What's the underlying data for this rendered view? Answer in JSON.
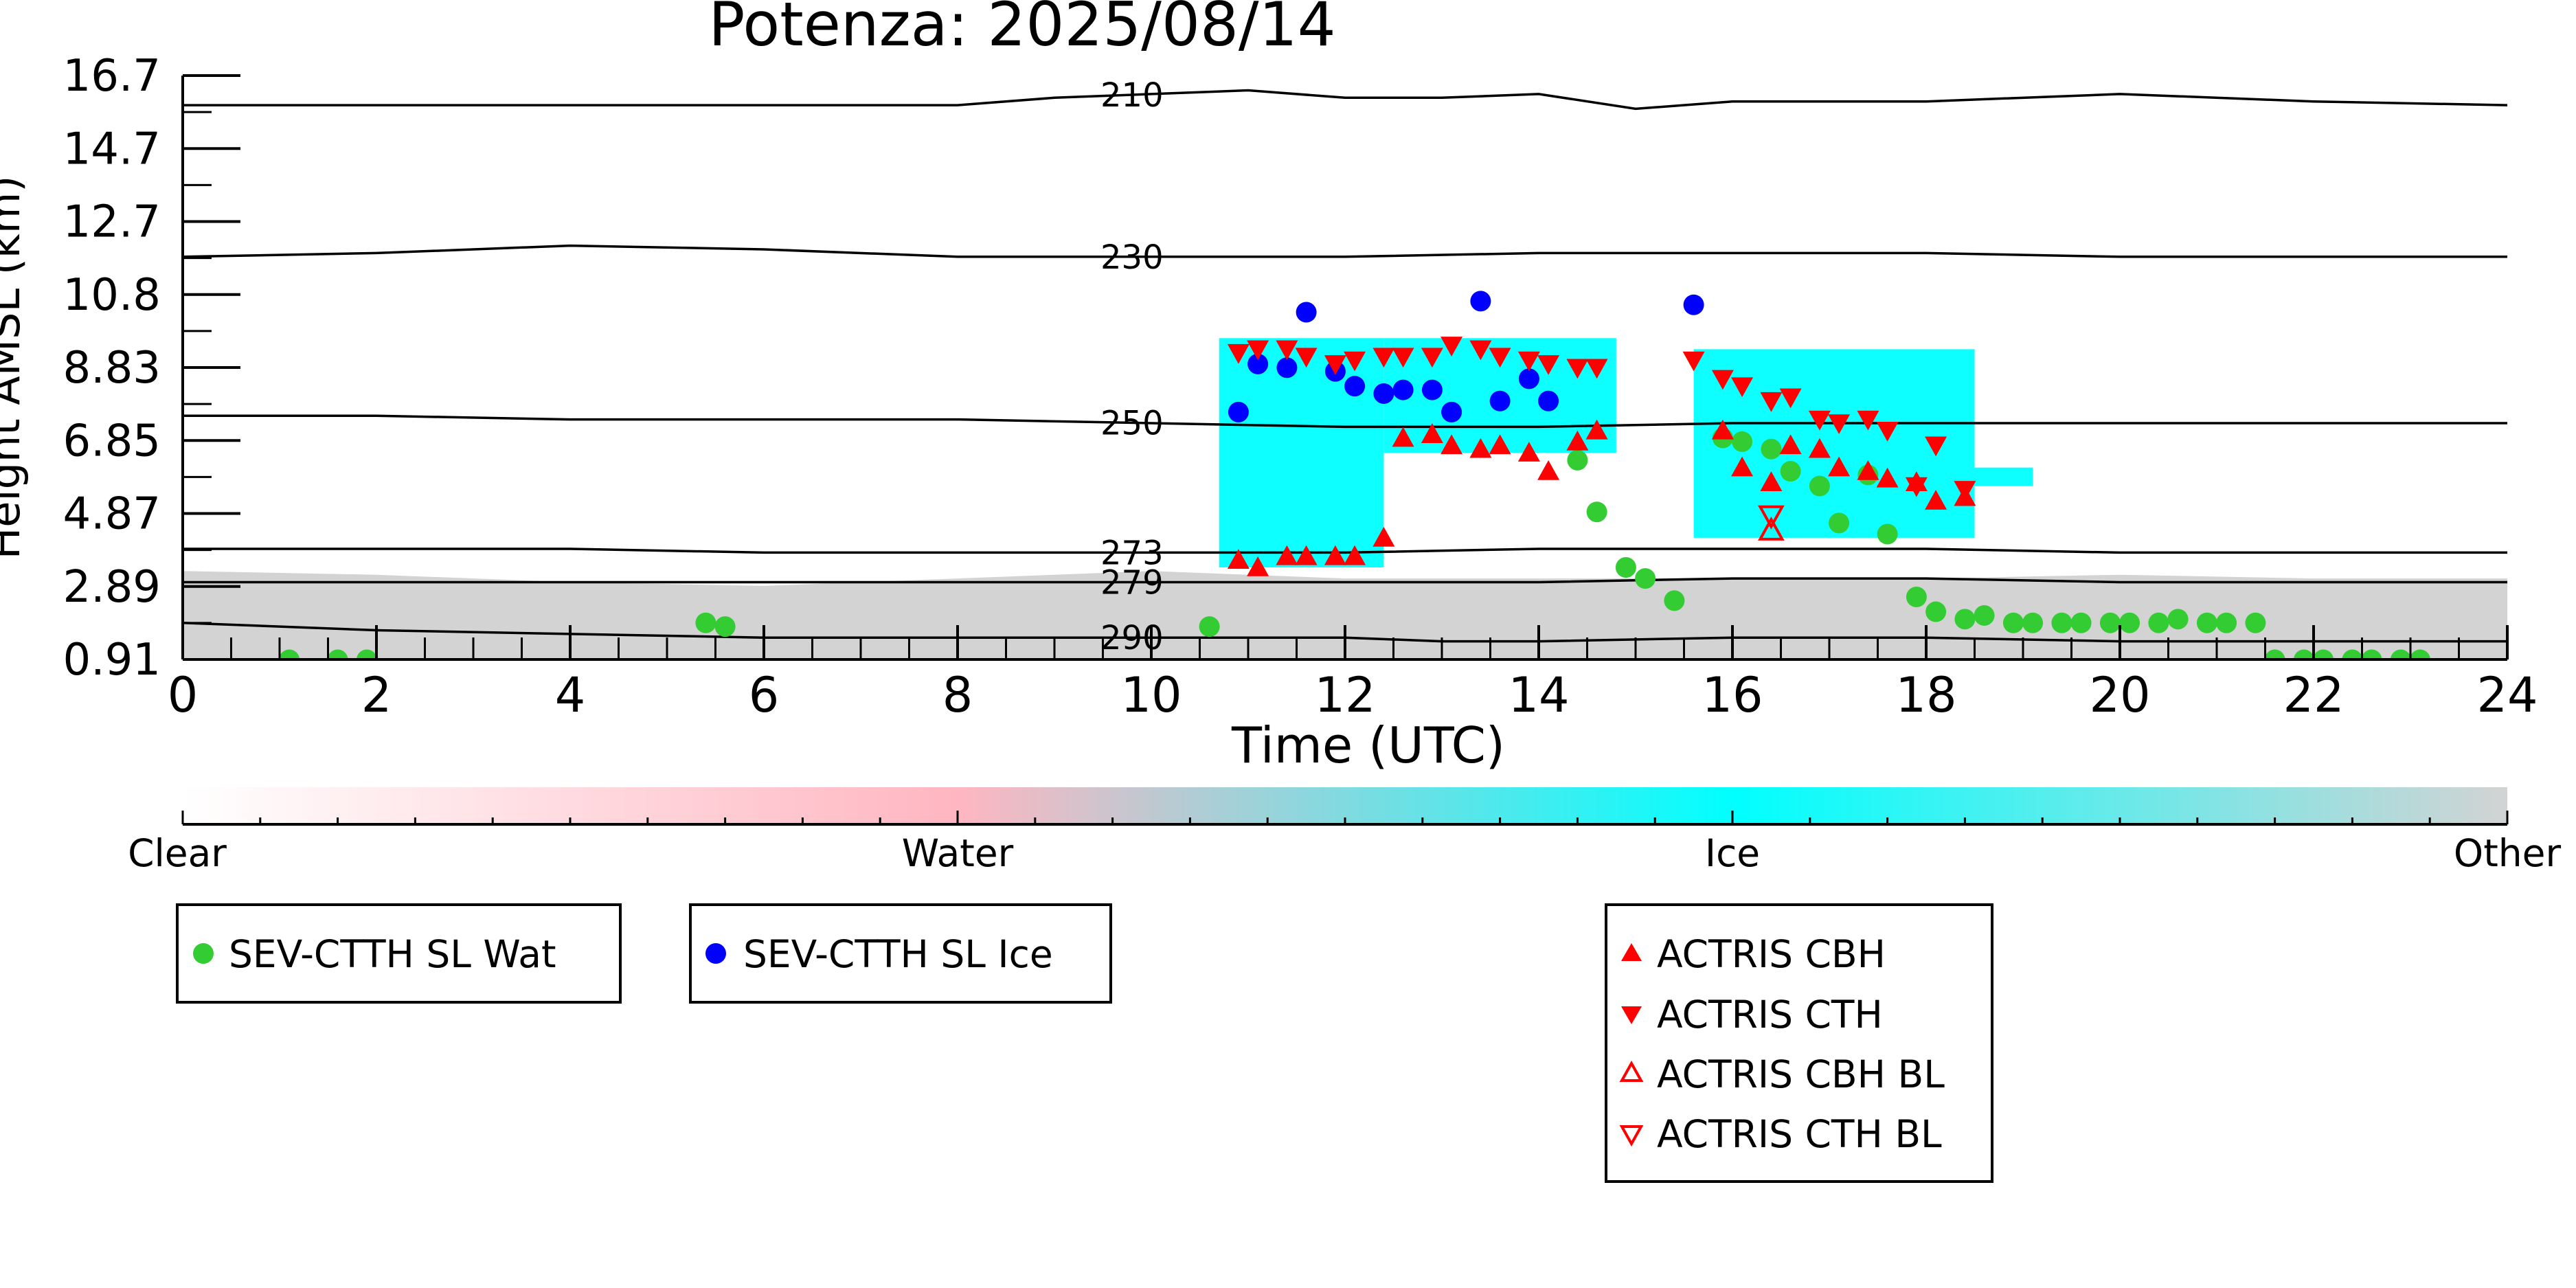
{
  "colors": {
    "axis": "#000000",
    "clear": "#ffffff",
    "water": "#ffb6c1",
    "ice": "#00ffff",
    "other": "#d3d3d3",
    "wat_marker": "#33cc33",
    "ice_marker": "#0000ff",
    "actris_marker": "#ff0000"
  },
  "chart_data": {
    "type": "scatter",
    "title": "Potenza: 2025/08/14",
    "xlabel": "Time (UTC)",
    "ylabel": "Height AMSL (km)",
    "xlim": [
      0,
      24
    ],
    "ylim": [
      0.91,
      16.7
    ],
    "x_ticks": [
      "0",
      "2",
      "4",
      "6",
      "8",
      "10",
      "12",
      "14",
      "16",
      "18",
      "20",
      "22",
      "24"
    ],
    "y_ticks": [
      "0.91",
      "2.89",
      "4.87",
      "6.85",
      "8.83",
      "10.8",
      "12.7",
      "14.7",
      "16.7"
    ],
    "isotherms": [
      {
        "label": "210",
        "x": [
          0,
          4,
          8,
          9,
          10,
          11,
          12,
          13,
          14,
          15,
          16,
          18,
          20,
          22,
          24
        ],
        "y": [
          15.9,
          15.9,
          15.9,
          16.1,
          16.2,
          16.3,
          16.1,
          16.1,
          16.2,
          15.8,
          16.0,
          16.0,
          16.2,
          16.0,
          15.9
        ]
      },
      {
        "label": "230",
        "x": [
          0,
          2,
          4,
          6,
          8,
          10,
          12,
          14,
          16,
          18,
          20,
          22,
          24
        ],
        "y": [
          11.8,
          11.9,
          12.1,
          12.0,
          11.8,
          11.8,
          11.8,
          11.9,
          11.9,
          11.9,
          11.8,
          11.8,
          11.8
        ]
      },
      {
        "label": "250",
        "x": [
          0,
          2,
          4,
          6,
          8,
          10,
          12,
          14,
          16,
          18,
          20,
          22,
          24
        ],
        "y": [
          7.5,
          7.5,
          7.4,
          7.4,
          7.4,
          7.3,
          7.2,
          7.2,
          7.3,
          7.3,
          7.3,
          7.3,
          7.3
        ]
      },
      {
        "label": "273",
        "x": [
          0,
          2,
          4,
          6,
          8,
          10,
          12,
          14,
          16,
          18,
          20,
          22,
          24
        ],
        "y": [
          3.9,
          3.9,
          3.9,
          3.8,
          3.8,
          3.8,
          3.8,
          3.9,
          3.9,
          3.9,
          3.8,
          3.8,
          3.8
        ]
      },
      {
        "label": "279",
        "x": [
          0,
          2,
          4,
          6,
          8,
          10,
          12,
          14,
          16,
          18,
          20,
          22,
          24
        ],
        "y": [
          3.0,
          3.0,
          3.0,
          3.0,
          3.0,
          3.0,
          3.0,
          3.0,
          3.1,
          3.1,
          3.0,
          3.0,
          3.0
        ]
      },
      {
        "label": "290",
        "x": [
          0,
          2,
          4,
          6,
          8,
          10,
          12,
          13,
          14,
          16,
          18,
          20,
          22,
          24
        ],
        "y": [
          1.9,
          1.7,
          1.6,
          1.5,
          1.5,
          1.5,
          1.5,
          1.4,
          1.4,
          1.5,
          1.5,
          1.4,
          1.4,
          1.4
        ]
      }
    ],
    "series": [
      {
        "name": "SEV-CTTH SL Wat",
        "marker": "circle",
        "color": "#33cc33",
        "x": [
          1.1,
          1.6,
          1.9,
          5.4,
          5.6,
          10.6,
          14.4,
          14.6,
          14.9,
          15.1,
          15.4,
          15.9,
          16.1,
          16.4,
          16.6,
          16.9,
          17.1,
          17.4,
          17.6,
          17.9,
          18.1,
          18.4,
          18.6,
          18.9,
          19.1,
          19.4,
          19.6,
          19.9,
          20.1,
          20.4,
          20.6,
          20.9,
          21.1,
          21.4,
          21.6,
          21.9,
          22.1,
          22.4,
          22.6,
          22.9,
          23.1
        ],
        "y": [
          0.9,
          0.9,
          0.9,
          1.9,
          1.8,
          1.8,
          6.3,
          4.9,
          3.4,
          3.1,
          2.5,
          6.9,
          6.8,
          6.6,
          6.0,
          5.6,
          4.6,
          5.9,
          4.3,
          2.6,
          2.2,
          2.0,
          2.1,
          1.9,
          1.9,
          1.9,
          1.9,
          1.9,
          1.9,
          1.9,
          2.0,
          1.9,
          1.9,
          1.9,
          0.9,
          0.9,
          0.9,
          0.9,
          0.9,
          0.9,
          0.9
        ]
      },
      {
        "name": "SEV-CTTH SL Ice",
        "marker": "circle",
        "color": "#0000ff",
        "x": [
          10.9,
          11.1,
          11.4,
          11.6,
          11.9,
          12.1,
          12.4,
          12.6,
          12.9,
          13.1,
          13.4,
          13.6,
          13.9,
          14.1,
          15.6
        ],
        "y": [
          7.6,
          8.9,
          8.8,
          10.3,
          8.7,
          8.3,
          8.1,
          8.2,
          8.2,
          7.6,
          10.6,
          7.9,
          8.5,
          7.9,
          10.5
        ]
      },
      {
        "name": "ACTRIS CBH",
        "marker": "triangle-up",
        "color": "#ff0000",
        "x": [
          10.9,
          11.1,
          11.4,
          11.6,
          11.9,
          12.1,
          12.4,
          12.6,
          12.9,
          13.1,
          13.4,
          13.6,
          13.9,
          14.1,
          14.4,
          14.6,
          15.9,
          16.1,
          16.4,
          16.6,
          16.9,
          17.1,
          17.4,
          17.6,
          17.9,
          18.1,
          18.4
        ],
        "y": [
          3.6,
          3.4,
          3.7,
          3.7,
          3.7,
          3.7,
          4.2,
          6.9,
          7.0,
          6.7,
          6.6,
          6.7,
          6.5,
          6.0,
          6.8,
          7.1,
          7.1,
          6.1,
          5.7,
          6.7,
          6.6,
          6.1,
          6.0,
          5.8,
          5.7,
          5.2,
          5.3
        ]
      },
      {
        "name": "ACTRIS CTH",
        "marker": "triangle-down",
        "color": "#ff0000",
        "x": [
          10.9,
          11.1,
          11.4,
          11.6,
          11.9,
          12.1,
          12.4,
          12.6,
          12.9,
          13.1,
          13.4,
          13.6,
          13.9,
          14.1,
          14.4,
          14.6,
          15.6,
          15.9,
          16.1,
          16.4,
          16.6,
          16.9,
          17.1,
          17.4,
          17.6,
          17.9,
          18.1,
          18.4
        ],
        "y": [
          9.2,
          9.3,
          9.3,
          9.1,
          8.9,
          9.0,
          9.1,
          9.1,
          9.1,
          9.4,
          9.3,
          9.1,
          9.0,
          8.9,
          8.8,
          8.8,
          9.0,
          8.5,
          8.3,
          7.9,
          8.0,
          7.4,
          7.3,
          7.4,
          7.1,
          5.6,
          6.7,
          5.5
        ]
      },
      {
        "name": "ACTRIS CBH BL",
        "marker": "triangle-up-open",
        "color": "#ff0000",
        "x": [
          16.4
        ],
        "y": [
          4.4
        ]
      },
      {
        "name": "ACTRIS CTH BL",
        "marker": "triangle-down-open",
        "color": "#ff0000",
        "x": [
          16.4
        ],
        "y": [
          4.8
        ]
      }
    ],
    "classification_regions": [
      {
        "class": "Other",
        "x": [
          0,
          24
        ],
        "y_bottom": 0.91,
        "y_top": [
          3.3,
          3.2,
          3.0,
          2.9,
          3.1,
          3.3,
          3.1,
          3.1,
          3.1,
          3.1,
          3.2,
          3.1,
          3.1
        ]
      },
      {
        "class": "Ice",
        "x": [
          10.7,
          12.4
        ],
        "y": [
          3.4,
          9.6
        ]
      },
      {
        "class": "Ice",
        "x": [
          12.4,
          14.8
        ],
        "y": [
          6.5,
          9.6
        ]
      },
      {
        "class": "Ice",
        "x": [
          15.6,
          18.5
        ],
        "y": [
          4.2,
          9.3
        ]
      },
      {
        "class": "Ice",
        "x": [
          18.5,
          19.1
        ],
        "y": [
          5.6,
          6.1
        ]
      }
    ],
    "colorbar": {
      "labels": [
        "Clear",
        "Water",
        "Ice",
        "Other"
      ]
    },
    "legends": [
      {
        "entries": [
          "SEV-CTTH SL Wat"
        ]
      },
      {
        "entries": [
          "SEV-CTTH SL Ice"
        ]
      },
      {
        "entries": [
          "ACTRIS CBH",
          "ACTRIS CTH",
          "ACTRIS CBH BL",
          "ACTRIS CTH BL"
        ]
      }
    ]
  }
}
